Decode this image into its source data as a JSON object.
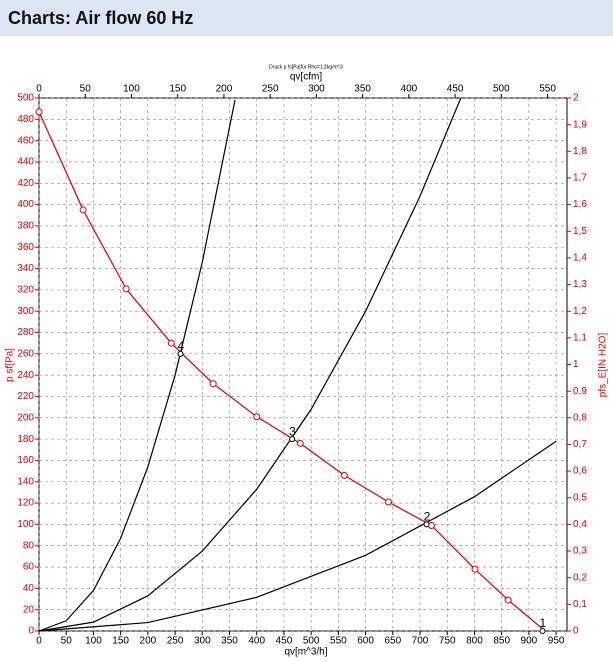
{
  "header": {
    "title": "Charts: Air flow 60 Hz"
  },
  "chart_data": {
    "type": "line",
    "title": "Druck p fs[Pa]für Rho=1,2kg/m^3",
    "x_label": "qv[m^3/h]",
    "x2_label": "qv[cfm]",
    "y_label": "p sf[Pa]",
    "y2_label": "pfs_E[IN H2O]",
    "xlim": [
      0,
      970
    ],
    "xticks": [
      0,
      50,
      100,
      150,
      200,
      250,
      300,
      350,
      400,
      450,
      500,
      550,
      600,
      650,
      700,
      750,
      800,
      850,
      900,
      950
    ],
    "x2lim": [
      0,
      571
    ],
    "x2ticks": [
      0,
      50,
      100,
      150,
      200,
      250,
      300,
      350,
      400,
      450,
      500,
      550
    ],
    "ylim": [
      0,
      500
    ],
    "yticks": [
      0,
      20,
      40,
      60,
      80,
      100,
      120,
      140,
      160,
      180,
      200,
      220,
      240,
      260,
      280,
      300,
      320,
      340,
      360,
      380,
      400,
      420,
      440,
      460,
      480,
      500
    ],
    "y2lim": [
      0,
      2
    ],
    "y2ticks": [
      0,
      {
        "value": 0.1,
        "label": "0,1"
      },
      {
        "value": 0.2,
        "label": "0,2"
      },
      {
        "value": 0.3,
        "label": "0,3"
      },
      {
        "value": 0.4,
        "label": "0,4"
      },
      {
        "value": 0.5,
        "label": "0,5"
      },
      {
        "value": 0.6,
        "label": "0,6"
      },
      {
        "value": 0.7,
        "label": "0,7"
      },
      {
        "value": 0.8,
        "label": "0,8"
      },
      {
        "value": 0.9,
        "label": "0,9"
      },
      1,
      {
        "value": 1.1,
        "label": "1,1"
      },
      {
        "value": 1.2,
        "label": "1,2"
      },
      {
        "value": 1.3,
        "label": "1,3"
      },
      {
        "value": 1.4,
        "label": "1,4"
      },
      {
        "value": 1.5,
        "label": "1,5"
      },
      {
        "value": 1.6,
        "label": "1,6"
      },
      {
        "value": 1.7,
        "label": "1,7"
      },
      {
        "value": 1.8,
        "label": "1,8"
      },
      {
        "value": 1.9,
        "label": "1,9"
      },
      2
    ],
    "grid": true,
    "series": [
      {
        "color": "#e00000",
        "markers": true,
        "x": [
          0,
          81,
          160,
          243,
          320,
          400,
          480,
          561,
          642,
          721,
          801,
          862,
          930
        ],
        "values": [
          487,
          395,
          321,
          270,
          232,
          201,
          176,
          146,
          121,
          99,
          58,
          29,
          0
        ]
      },
      {
        "color": "#000000",
        "markers": false,
        "x": [
          0,
          50,
          100,
          150,
          200,
          250,
          300,
          360
        ],
        "values": [
          0,
          9.6,
          38,
          87,
          154,
          240,
          346,
          498
        ]
      },
      {
        "color": "#000000",
        "markers": false,
        "x": [
          0,
          100,
          200,
          300,
          400,
          500,
          600,
          700,
          775
        ],
        "values": [
          0,
          8.3,
          33,
          75,
          133,
          208,
          300,
          408,
          500
        ]
      },
      {
        "color": "#000000",
        "markers": false,
        "x": [
          0,
          200,
          400,
          600,
          800,
          950
        ],
        "values": [
          0,
          7.9,
          31.6,
          71,
          126,
          178
        ]
      }
    ],
    "points": {
      "x": [
        260,
        465,
        712,
        925
      ],
      "values": [
        260,
        180,
        100,
        0
      ],
      "labels": [
        "4",
        "3",
        "2",
        "1"
      ]
    }
  }
}
